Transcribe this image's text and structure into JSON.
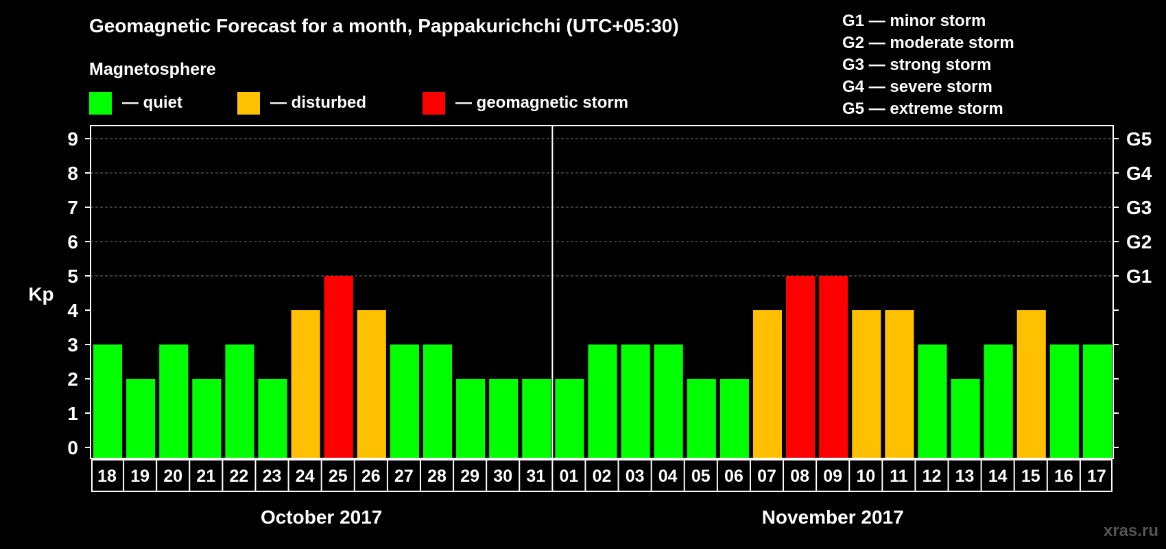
{
  "title": "Geomagnetic Forecast for a month, Pappakurichchi (UTC+05:30)",
  "legend": {
    "heading": "Magnetosphere",
    "items": [
      {
        "key": "quiet",
        "label": "— quiet",
        "color": "#00ff00"
      },
      {
        "key": "disturbed",
        "label": "— disturbed",
        "color": "#ffc000"
      },
      {
        "key": "storm",
        "label": "— geomagnetic storm",
        "color": "#ff0000"
      }
    ]
  },
  "storm_scale": [
    "G1 — minor storm",
    "G2 — moderate storm",
    "G3 — strong storm",
    "G4 — severe storm",
    "G5 — extreme storm"
  ],
  "watermark": "xras.ru",
  "chart_data": {
    "type": "bar",
    "ylabel": "Kp",
    "ylim": [
      0,
      9
    ],
    "yticks": [
      "0",
      "1",
      "2",
      "3",
      "4",
      "5",
      "6",
      "7",
      "8",
      "9"
    ],
    "right_axis": [
      {
        "y": 5,
        "label": "G1"
      },
      {
        "y": 6,
        "label": "G2"
      },
      {
        "y": 7,
        "label": "G3"
      },
      {
        "y": 8,
        "label": "G4"
      },
      {
        "y": 9,
        "label": "G5"
      }
    ],
    "grid": "dashed horizontal at 5-9",
    "categories": [
      "18",
      "19",
      "20",
      "21",
      "22",
      "23",
      "24",
      "25",
      "26",
      "27",
      "28",
      "29",
      "30",
      "31",
      "01",
      "02",
      "03",
      "04",
      "05",
      "06",
      "07",
      "08",
      "09",
      "10",
      "11",
      "12",
      "13",
      "14",
      "15",
      "16",
      "17"
    ],
    "values": [
      3,
      2,
      3,
      2,
      3,
      2,
      4,
      5,
      4,
      3,
      3,
      2,
      2,
      2,
      2,
      3,
      3,
      3,
      2,
      2,
      4,
      5,
      5,
      4,
      4,
      3,
      2,
      3,
      4,
      3,
      3
    ],
    "colors": {
      "quiet": "#00ff00",
      "disturbed": "#ffc000",
      "storm": "#ff0000"
    },
    "months": [
      {
        "label": "October 2017",
        "start": 0,
        "count": 14
      },
      {
        "label": "November 2017",
        "start": 14,
        "count": 17
      }
    ]
  }
}
